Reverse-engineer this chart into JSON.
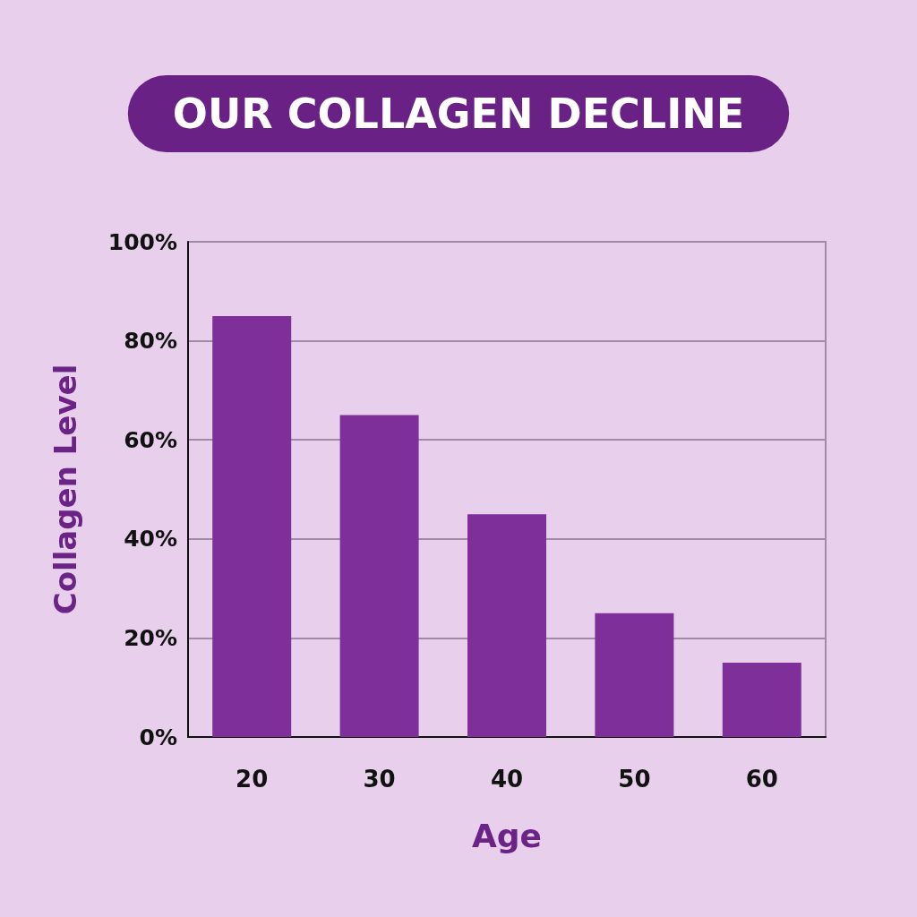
{
  "chart_data": {
    "type": "bar",
    "title": "OUR COLLAGEN DECLINE",
    "xlabel": "Age",
    "ylabel": "Collagen Level",
    "categories": [
      "20",
      "30",
      "40",
      "50",
      "60"
    ],
    "values": [
      85,
      65,
      45,
      25,
      15
    ],
    "color": "#7f2f9a",
    "ylim": [
      0,
      100
    ],
    "yticks": [
      {
        "value": 0,
        "label": "0%"
      },
      {
        "value": 20,
        "label": "20%"
      },
      {
        "value": 40,
        "label": "40%"
      },
      {
        "value": 60,
        "label": "60%"
      },
      {
        "value": 80,
        "label": "80%"
      },
      {
        "value": 100,
        "label": "100%"
      }
    ],
    "grid": "y"
  }
}
